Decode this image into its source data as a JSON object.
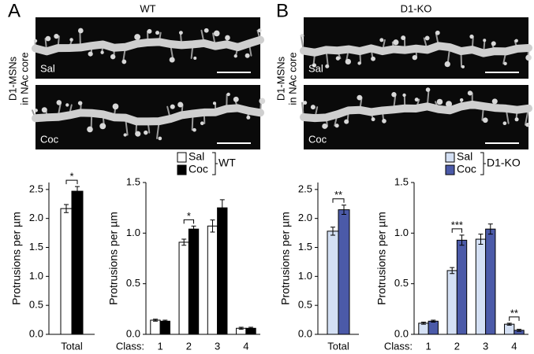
{
  "panels": [
    {
      "letter": "A",
      "title": "WT",
      "side_label": [
        "D1-MSNs",
        "in NAc core"
      ],
      "images": [
        "Sal",
        "Coc"
      ]
    },
    {
      "letter": "B",
      "title": "D1-KO",
      "side_label": [
        "D1-MSNs",
        "in NAc core"
      ],
      "images": [
        "Sal",
        "Coc"
      ]
    }
  ],
  "chart_data": [
    {
      "type": "bar",
      "ylabel": "Protrusions per µm",
      "categories": [
        "Total"
      ],
      "series": [
        {
          "name": "Sal",
          "color": "#ffffff",
          "values": [
            2.17
          ],
          "errors": [
            0.07
          ]
        },
        {
          "name": "Coc",
          "color": "#000000",
          "values": [
            2.47
          ],
          "errors": [
            0.08
          ]
        }
      ],
      "annotations": [
        "*"
      ],
      "ylim": [
        0,
        2.62
      ],
      "yticks": [
        {
          "value": 0,
          "label": "0.0"
        },
        0.5,
        {
          "value": 1,
          "label": "1.0"
        },
        1.5,
        {
          "value": 2,
          "label": "2.0"
        },
        2.5
      ]
    },
    {
      "type": "bar",
      "ylabel": "Protrusions per µm",
      "xlabel": "Class:",
      "categories": [
        "1",
        "2",
        "3",
        "4"
      ],
      "series": [
        {
          "name": "Sal",
          "color": "#ffffff",
          "values": [
            0.14,
            0.91,
            1.07,
            0.06
          ],
          "errors": [
            0.01,
            0.03,
            0.06,
            0.01
          ]
        },
        {
          "name": "Coc",
          "color": "#000000",
          "values": [
            0.13,
            1.04,
            1.25,
            0.06
          ],
          "errors": [
            0.01,
            0.03,
            0.08,
            0.01
          ]
        }
      ],
      "annotations": [
        null,
        "*",
        null,
        null
      ],
      "legend_title": "WT",
      "ylim": [
        0,
        1.5
      ],
      "yticks": [
        {
          "value": 0,
          "label": "0.0"
        },
        0.5,
        {
          "value": 1,
          "label": "1.0"
        },
        1.5
      ]
    },
    {
      "type": "bar",
      "ylabel": "Protrusions per µm",
      "categories": [
        "Total"
      ],
      "series": [
        {
          "name": "Sal",
          "color": "#d4e0f4",
          "values": [
            1.78
          ],
          "errors": [
            0.07
          ]
        },
        {
          "name": "Coc",
          "color": "#4b5aa8",
          "values": [
            2.15
          ],
          "errors": [
            0.08
          ]
        }
      ],
      "annotations": [
        "**"
      ],
      "ylim": [
        0,
        2.62
      ],
      "yticks": [
        {
          "value": 0,
          "label": "0.0"
        },
        0.5,
        {
          "value": 1,
          "label": "1.0"
        },
        1.5,
        {
          "value": 2,
          "label": "2.0"
        },
        2.5
      ]
    },
    {
      "type": "bar",
      "ylabel": "Protrusions per µm",
      "xlabel": "Class:",
      "categories": [
        "1",
        "2",
        "3",
        "4"
      ],
      "series": [
        {
          "name": "Sal",
          "color": "#d4e0f4",
          "values": [
            0.11,
            0.63,
            0.94,
            0.1
          ],
          "errors": [
            0.01,
            0.03,
            0.05,
            0.01
          ]
        },
        {
          "name": "Coc",
          "color": "#4b5aa8",
          "values": [
            0.13,
            0.93,
            1.04,
            0.04
          ],
          "errors": [
            0.01,
            0.05,
            0.05,
            0.01
          ]
        }
      ],
      "annotations": [
        null,
        "***",
        null,
        "**"
      ],
      "legend_title": "D1-KO",
      "ylim": [
        0,
        1.5
      ],
      "yticks": [
        {
          "value": 0,
          "label": "0.0"
        },
        0.5,
        {
          "value": 1,
          "label": "1.0"
        },
        1.5
      ]
    }
  ]
}
